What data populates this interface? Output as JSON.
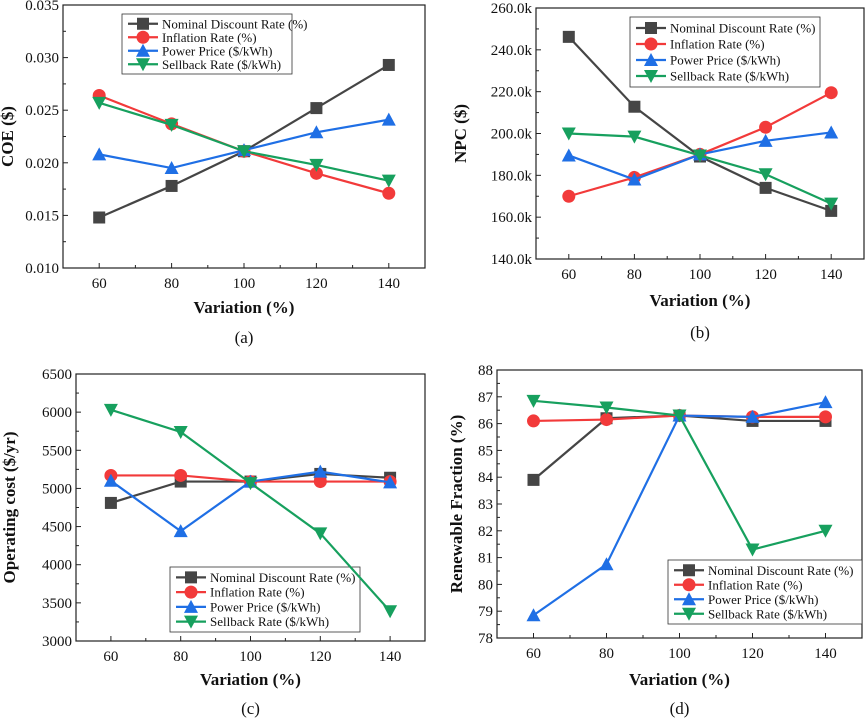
{
  "chart_data": [
    {
      "type": "line",
      "panel": "(a)",
      "xlabel": "Variation (%)",
      "ylabel": "COE ($)",
      "x": [
        60,
        80,
        100,
        120,
        140
      ],
      "xlim": [
        50,
        150
      ],
      "xticks": [
        "60",
        "80",
        "100",
        "120",
        "140"
      ],
      "ylim": [
        0.01,
        0.035
      ],
      "yticks": [
        "0.010",
        "0.015",
        "0.020",
        "0.025",
        "0.030",
        "0.035"
      ],
      "legend": "top-left",
      "series": [
        {
          "name": "Nominal Discount Rate (%)",
          "values": [
            0.0148,
            0.0178,
            0.0211,
            0.0252,
            0.0293
          ]
        },
        {
          "name": "Inflation Rate (%)",
          "values": [
            0.0264,
            0.0237,
            0.0211,
            0.019,
            0.0171
          ]
        },
        {
          "name": "Power Price ($/kWh)",
          "values": [
            0.0208,
            0.0195,
            0.0212,
            0.0229,
            0.0241
          ]
        },
        {
          "name": "Sellback Rate ($/kWh)",
          "values": [
            0.0257,
            0.0236,
            0.0211,
            0.0198,
            0.0183
          ]
        }
      ]
    },
    {
      "type": "line",
      "panel": "(b)",
      "xlabel": "Variation (%)",
      "ylabel": "NPC ($)",
      "x": [
        60,
        80,
        100,
        120,
        140
      ],
      "xlim": [
        50,
        150
      ],
      "xticks": [
        "60",
        "80",
        "100",
        "120",
        "140"
      ],
      "ylim": [
        140000,
        260000
      ],
      "yticks": [
        "140.0k",
        "160.0k",
        "180.0k",
        "200.0k",
        "220.0k",
        "240.0k",
        "260.0k"
      ],
      "legend": "top-right",
      "series": [
        {
          "name": "Nominal Discount Rate (%)",
          "values": [
            246200,
            212800,
            189000,
            174000,
            163000
          ]
        },
        {
          "name": "Inflation Rate (%)",
          "values": [
            170000,
            179000,
            190000,
            203000,
            219500
          ]
        },
        {
          "name": "Power Price ($/kWh)",
          "values": [
            189500,
            178000,
            190000,
            196500,
            200500
          ]
        },
        {
          "name": "Sellback Rate ($/kWh)",
          "values": [
            200000,
            198500,
            189500,
            180500,
            166500
          ]
        }
      ]
    },
    {
      "type": "line",
      "panel": "(c)",
      "xlabel": "Variation (%)",
      "ylabel": "Operating cost ($/yr)",
      "x": [
        60,
        80,
        100,
        120,
        140
      ],
      "xlim": [
        50,
        150
      ],
      "xticks": [
        "60",
        "80",
        "100",
        "120",
        "140"
      ],
      "ylim": [
        3000,
        6500
      ],
      "yticks": [
        "3000",
        "3500",
        "4000",
        "4500",
        "5000",
        "5500",
        "6000",
        "6500"
      ],
      "legend": "bottom-right",
      "series": [
        {
          "name": "Nominal Discount Rate (%)",
          "values": [
            4810,
            5090,
            5090,
            5190,
            5140
          ]
        },
        {
          "name": "Inflation Rate (%)",
          "values": [
            5170,
            5170,
            5090,
            5090,
            5090
          ]
        },
        {
          "name": "Power Price ($/kWh)",
          "values": [
            5100,
            4440,
            5090,
            5220,
            5080
          ]
        },
        {
          "name": "Sellback Rate ($/kWh)",
          "values": [
            6030,
            5740,
            5070,
            4410,
            3390
          ]
        }
      ]
    },
    {
      "type": "line",
      "panel": "(d)",
      "xlabel": "Variation (%)",
      "ylabel": "Renewable Fraction (%)",
      "x": [
        60,
        80,
        100,
        120,
        140
      ],
      "xlim": [
        50,
        150
      ],
      "xticks": [
        "60",
        "80",
        "100",
        "120",
        "140"
      ],
      "ylim": [
        78,
        88
      ],
      "yticks": [
        "78",
        "79",
        "80",
        "81",
        "82",
        "83",
        "84",
        "85",
        "86",
        "87",
        "88"
      ],
      "legend": "bottom-right",
      "series": [
        {
          "name": "Nominal Discount Rate (%)",
          "values": [
            83.9,
            86.2,
            86.3,
            86.1,
            86.1
          ]
        },
        {
          "name": "Inflation Rate (%)",
          "values": [
            86.1,
            86.15,
            86.3,
            86.25,
            86.25
          ]
        },
        {
          "name": "Power Price ($/kWh)",
          "values": [
            78.85,
            80.75,
            86.3,
            86.25,
            86.8
          ]
        },
        {
          "name": "Sellback Rate ($/kWh)",
          "values": [
            86.85,
            86.6,
            86.3,
            81.3,
            82.0
          ]
        }
      ]
    }
  ],
  "series_colors": [
    "#454545",
    "#f23a3a",
    "#1f6fe5",
    "#17a05e"
  ],
  "series_markers": [
    "square",
    "circle",
    "triangle-up",
    "triangle-down"
  ]
}
